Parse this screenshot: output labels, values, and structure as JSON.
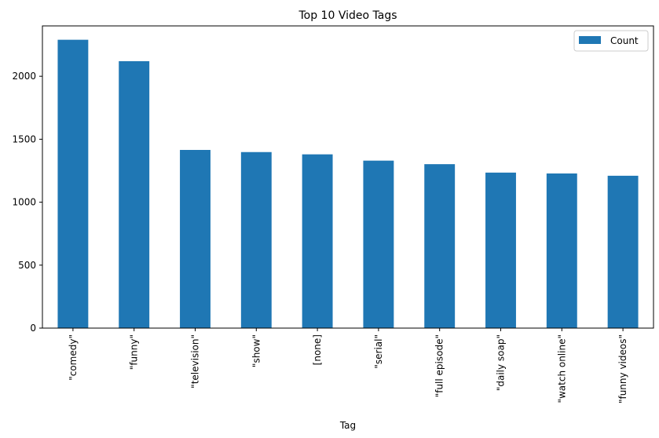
{
  "chart_data": {
    "type": "bar",
    "title": "Top 10 Video Tags",
    "xlabel": "Tag",
    "ylabel": "",
    "categories": [
      "\"comedy\"",
      "\"funny\"",
      "\"television\"",
      "\"show\"",
      "[none]",
      "\"serial\"",
      "\"full episode\"",
      "\"daily soap\"",
      "\"watch online\"",
      "\"funny videos\""
    ],
    "series": [
      {
        "name": "Count",
        "values": [
          2290,
          2120,
          1415,
          1398,
          1380,
          1330,
          1302,
          1235,
          1228,
          1210
        ],
        "color": "#1f77b4"
      }
    ],
    "ylim": [
      0,
      2400
    ],
    "yticks": [
      0,
      500,
      1000,
      1500,
      2000
    ],
    "grid": false,
    "legend_position": "top-right"
  }
}
